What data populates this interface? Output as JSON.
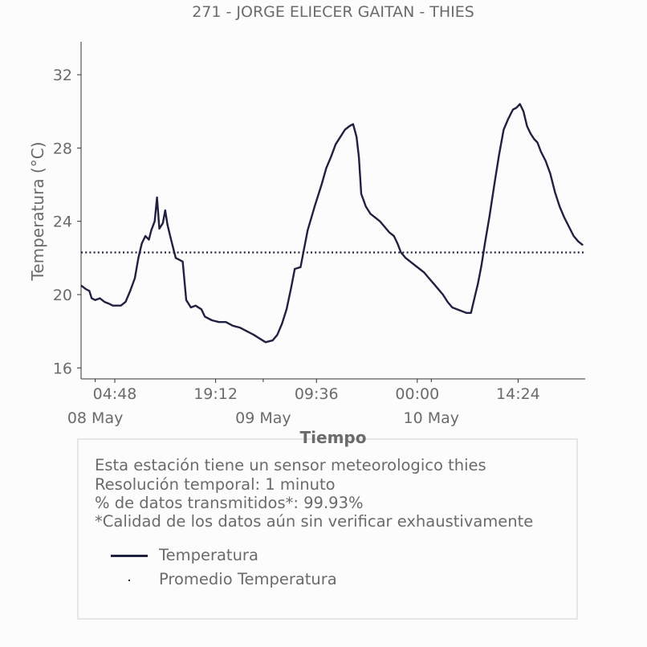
{
  "chart_data": {
    "type": "line",
    "title": "271 - JORGE ELIECER GAITAN - THIES",
    "xlabel": "Tiempo",
    "ylabel": "Temperatura (°C)",
    "ylim": [
      15.4,
      33.8
    ],
    "yticks": [
      16,
      20,
      24,
      28,
      32
    ],
    "xlim": [
      "2024-05-07T23:59",
      "2024-05-10T23:59"
    ],
    "xticks": [
      {
        "time": "2024-05-08T04:48",
        "label": "04:48",
        "date_label": "08 May"
      },
      {
        "time": "2024-05-08T19:12",
        "label": "19:12",
        "date_label": ""
      },
      {
        "time": "2024-05-09T09:36",
        "label": "09:36",
        "date_label": ""
      },
      {
        "time": "2024-05-10T00:00",
        "label": "00:00",
        "date_label": ""
      },
      {
        "time": "2024-05-10T14:24",
        "label": "14:24",
        "date_label": ""
      }
    ],
    "date_labels": [
      {
        "time": "2024-05-08T02:00",
        "label": "08 May"
      },
      {
        "time": "2024-05-09T02:00",
        "label": "09 May"
      },
      {
        "time": "2024-05-10T02:00",
        "label": "10 May"
      }
    ],
    "minor_ticks": [
      "2024-05-08T02:00",
      "2024-05-09T02:00",
      "2024-05-10T02:00"
    ],
    "grid": false,
    "legend_position": "bottom",
    "series": [
      {
        "name": "Temperatura",
        "color": "#202040",
        "style": "solid",
        "points": [
          [
            "2024-05-07T23:59",
            20.5
          ],
          [
            "2024-05-08T00:40",
            20.3
          ],
          [
            "2024-05-08T01:10",
            20.2
          ],
          [
            "2024-05-08T01:30",
            19.8
          ],
          [
            "2024-05-08T02:00",
            19.7
          ],
          [
            "2024-05-08T02:40",
            19.8
          ],
          [
            "2024-05-08T03:20",
            19.6
          ],
          [
            "2024-05-08T04:00",
            19.5
          ],
          [
            "2024-05-08T04:30",
            19.4
          ],
          [
            "2024-05-08T05:10",
            19.4
          ],
          [
            "2024-05-08T05:40",
            19.4
          ],
          [
            "2024-05-08T06:20",
            19.6
          ],
          [
            "2024-05-08T07:00",
            20.2
          ],
          [
            "2024-05-08T07:40",
            20.9
          ],
          [
            "2024-05-08T08:10",
            22.0
          ],
          [
            "2024-05-08T08:40",
            22.8
          ],
          [
            "2024-05-08T09:10",
            23.2
          ],
          [
            "2024-05-08T09:40",
            23.0
          ],
          [
            "2024-05-08T10:00",
            23.5
          ],
          [
            "2024-05-08T10:30",
            24.0
          ],
          [
            "2024-05-08T10:50",
            25.3
          ],
          [
            "2024-05-08T11:10",
            23.6
          ],
          [
            "2024-05-08T11:40",
            23.9
          ],
          [
            "2024-05-08T12:00",
            24.6
          ],
          [
            "2024-05-08T12:20",
            23.8
          ],
          [
            "2024-05-08T12:50",
            23.0
          ],
          [
            "2024-05-08T13:10",
            22.5
          ],
          [
            "2024-05-08T13:30",
            22.0
          ],
          [
            "2024-05-08T14:00",
            21.9
          ],
          [
            "2024-05-08T14:30",
            21.8
          ],
          [
            "2024-05-08T15:00",
            19.7
          ],
          [
            "2024-05-08T15:40",
            19.3
          ],
          [
            "2024-05-08T16:20",
            19.4
          ],
          [
            "2024-05-08T17:10",
            19.2
          ],
          [
            "2024-05-08T17:40",
            18.8
          ],
          [
            "2024-05-08T18:40",
            18.6
          ],
          [
            "2024-05-08T19:40",
            18.5
          ],
          [
            "2024-05-08T20:40",
            18.5
          ],
          [
            "2024-05-08T21:40",
            18.3
          ],
          [
            "2024-05-08T22:40",
            18.2
          ],
          [
            "2024-05-08T23:40",
            18.0
          ],
          [
            "2024-05-09T00:40",
            17.8
          ],
          [
            "2024-05-09T01:30",
            17.6
          ],
          [
            "2024-05-09T02:20",
            17.4
          ],
          [
            "2024-05-09T03:20",
            17.5
          ],
          [
            "2024-05-09T04:00",
            17.8
          ],
          [
            "2024-05-09T04:40",
            18.4
          ],
          [
            "2024-05-09T05:20",
            19.2
          ],
          [
            "2024-05-09T06:00",
            20.4
          ],
          [
            "2024-05-09T06:30",
            21.4
          ],
          [
            "2024-05-09T07:20",
            21.5
          ],
          [
            "2024-05-09T08:20",
            23.5
          ],
          [
            "2024-05-09T09:20",
            24.8
          ],
          [
            "2024-05-09T10:20",
            26.0
          ],
          [
            "2024-05-09T11:00",
            26.9
          ],
          [
            "2024-05-09T11:40",
            27.5
          ],
          [
            "2024-05-09T12:20",
            28.2
          ],
          [
            "2024-05-09T13:00",
            28.6
          ],
          [
            "2024-05-09T13:40",
            29.0
          ],
          [
            "2024-05-09T14:20",
            29.2
          ],
          [
            "2024-05-09T14:50",
            29.3
          ],
          [
            "2024-05-09T15:20",
            28.6
          ],
          [
            "2024-05-09T15:40",
            27.5
          ],
          [
            "2024-05-09T16:00",
            25.5
          ],
          [
            "2024-05-09T16:40",
            24.8
          ],
          [
            "2024-05-09T17:20",
            24.4
          ],
          [
            "2024-05-09T18:00",
            24.2
          ],
          [
            "2024-05-09T18:40",
            24.0
          ],
          [
            "2024-05-09T19:20",
            23.7
          ],
          [
            "2024-05-09T20:00",
            23.4
          ],
          [
            "2024-05-09T20:40",
            23.2
          ],
          [
            "2024-05-09T21:10",
            22.8
          ],
          [
            "2024-05-09T21:40",
            22.3
          ],
          [
            "2024-05-09T22:20",
            22.0
          ],
          [
            "2024-05-09T23:00",
            21.8
          ],
          [
            "2024-05-09T23:40",
            21.6
          ],
          [
            "2024-05-10T00:20",
            21.4
          ],
          [
            "2024-05-10T01:00",
            21.2
          ],
          [
            "2024-05-10T01:40",
            20.9
          ],
          [
            "2024-05-10T02:20",
            20.6
          ],
          [
            "2024-05-10T03:00",
            20.3
          ],
          [
            "2024-05-10T03:40",
            20.0
          ],
          [
            "2024-05-10T04:20",
            19.6
          ],
          [
            "2024-05-10T05:00",
            19.3
          ],
          [
            "2024-05-10T05:40",
            19.2
          ],
          [
            "2024-05-10T06:20",
            19.1
          ],
          [
            "2024-05-10T07:00",
            19.0
          ],
          [
            "2024-05-10T07:40",
            19.0
          ],
          [
            "2024-05-10T08:10",
            19.8
          ],
          [
            "2024-05-10T08:40",
            20.6
          ],
          [
            "2024-05-10T09:10",
            21.6
          ],
          [
            "2024-05-10T09:40",
            22.8
          ],
          [
            "2024-05-10T10:20",
            24.3
          ],
          [
            "2024-05-10T11:00",
            26.0
          ],
          [
            "2024-05-10T11:40",
            27.6
          ],
          [
            "2024-05-10T12:20",
            29.0
          ],
          [
            "2024-05-10T13:00",
            29.6
          ],
          [
            "2024-05-10T13:40",
            30.1
          ],
          [
            "2024-05-10T14:10",
            30.2
          ],
          [
            "2024-05-10T14:40",
            30.4
          ],
          [
            "2024-05-10T15:10",
            30.0
          ],
          [
            "2024-05-10T15:40",
            29.2
          ],
          [
            "2024-05-10T16:10",
            28.8
          ],
          [
            "2024-05-10T16:40",
            28.5
          ],
          [
            "2024-05-10T17:10",
            28.3
          ],
          [
            "2024-05-10T17:40",
            27.8
          ],
          [
            "2024-05-10T18:20",
            27.3
          ],
          [
            "2024-05-10T19:00",
            26.6
          ],
          [
            "2024-05-10T19:40",
            25.6
          ],
          [
            "2024-05-10T20:20",
            24.8
          ],
          [
            "2024-05-10T21:00",
            24.2
          ],
          [
            "2024-05-10T21:40",
            23.7
          ],
          [
            "2024-05-10T22:20",
            23.2
          ],
          [
            "2024-05-10T23:00",
            22.9
          ],
          [
            "2024-05-10T23:40",
            22.7
          ]
        ]
      },
      {
        "name": "Promedio Temperatura",
        "color": "#202040",
        "style": "dotted",
        "value": 22.3
      }
    ]
  },
  "info_box": {
    "line1": "Esta estación tiene un sensor meteorologico thies",
    "line2": "Resolución temporal: 1 minuto",
    "line3": "% de datos transmitidos*: 99.93%",
    "line4": "*Calidad de los datos aún sin verificar exhaustivamente"
  },
  "legend": {
    "items": [
      {
        "label": "Temperatura"
      },
      {
        "label": "Promedio Temperatura"
      }
    ]
  }
}
